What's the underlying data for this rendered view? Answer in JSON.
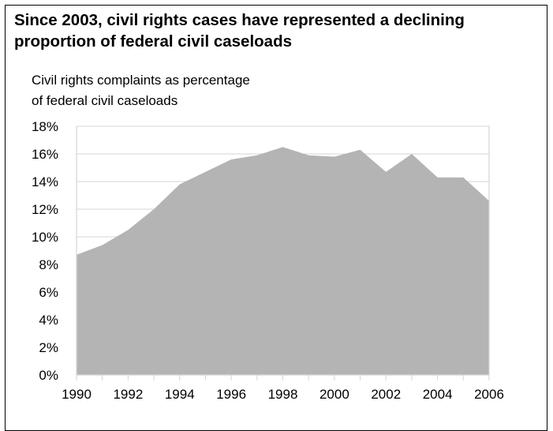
{
  "chart_data": {
    "type": "area",
    "title": "Since 2003, civil rights cases have represented a declining proportion of federal civil caseloads",
    "ylabel_lines": [
      "Civil rights complaints as percentage",
      "of federal civil caseloads"
    ],
    "xlabel": "",
    "x": [
      1990,
      1991,
      1992,
      1993,
      1994,
      1995,
      1996,
      1997,
      1998,
      1999,
      2000,
      2001,
      2002,
      2003,
      2004,
      2005,
      2006
    ],
    "x_tick_labels": [
      "1990",
      "1992",
      "1994",
      "1996",
      "1998",
      "2000",
      "2002",
      "2004",
      "2006"
    ],
    "y_tick_labels": [
      "0%",
      "2%",
      "4%",
      "6%",
      "8%",
      "10%",
      "12%",
      "14%",
      "16%",
      "18%"
    ],
    "ylim": [
      0,
      18
    ],
    "grid": true,
    "series": [
      {
        "values": [
          8.7,
          9.4,
          10.5,
          12.0,
          13.8,
          14.7,
          15.6,
          15.9,
          16.5,
          15.9,
          15.8,
          16.3,
          14.7,
          16.0,
          14.3,
          14.3,
          12.6
        ]
      }
    ],
    "colors": {
      "area": "#b4b4b4",
      "gridline": "#d4d4d4",
      "axis": "#d4d4d4"
    }
  }
}
